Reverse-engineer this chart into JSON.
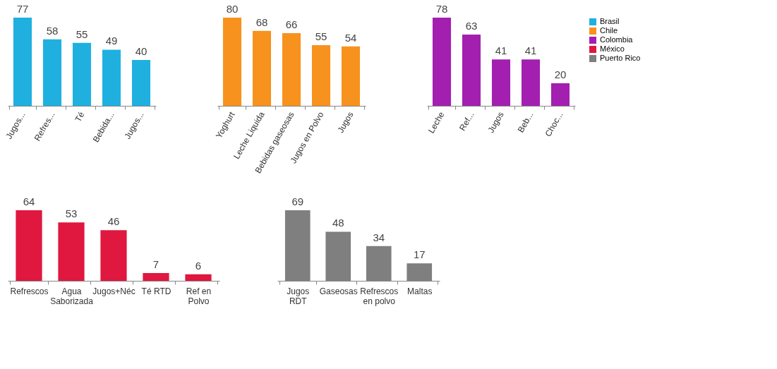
{
  "chart_data": [
    {
      "type": "bar",
      "categories": [
        "Jugos...",
        "Refres...",
        "Té",
        "Bebida...",
        "Jugos..."
      ],
      "series": [
        {
          "name": "Brasil",
          "color": "#1fb0e0",
          "values": [
            77,
            58,
            55,
            49,
            40
          ]
        }
      ],
      "data_labels": true,
      "grid": false,
      "legend": "right"
    },
    {
      "type": "bar",
      "categories": [
        "Yoghurt",
        "Leche Liquida",
        "Bebidas gaseosas",
        "Jugos en Polvo",
        "Jugos"
      ],
      "series": [
        {
          "name": "Chile",
          "color": "#f7921e",
          "values": [
            80,
            68,
            66,
            55,
            54
          ]
        }
      ],
      "data_labels": true,
      "grid": false,
      "legend": "right"
    },
    {
      "type": "bar",
      "categories": [
        "Leche",
        "Ref...",
        "Jugos",
        "Beb...",
        "Choc..."
      ],
      "series": [
        {
          "name": "Colombia",
          "color": "#a31fb0",
          "values": [
            78,
            63,
            41,
            41,
            20
          ]
        }
      ],
      "data_labels": true,
      "grid": false,
      "legend": "right"
    },
    {
      "type": "bar",
      "categories": [
        "Refrescos",
        "Agua\nSaborizada",
        "Jugos+Néc",
        "Té RTD",
        "Ref en\nPolvo"
      ],
      "series": [
        {
          "name": "México",
          "color": "#e0173f",
          "values": [
            64,
            53,
            46,
            7,
            6
          ]
        }
      ],
      "data_labels": true,
      "grid": false,
      "legend": "right"
    },
    {
      "type": "bar",
      "categories": [
        "Jugos\nRDT",
        "Gaseosas",
        "Refrescos\nen polvo",
        "Maltas"
      ],
      "series": [
        {
          "name": "Puerto Rico",
          "color": "#7f7f7f",
          "values": [
            69,
            48,
            34,
            17
          ]
        }
      ],
      "data_labels": true,
      "grid": false,
      "legend": "right"
    }
  ]
}
